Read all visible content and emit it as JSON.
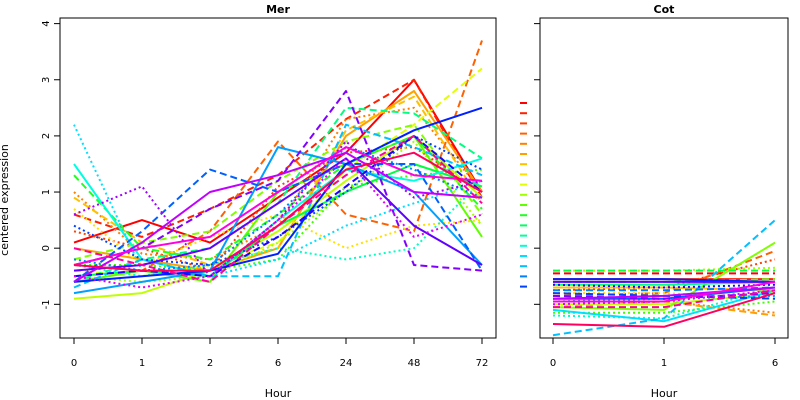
{
  "figure": {
    "ylabel": "centered expression"
  },
  "chart_data": [
    {
      "type": "line",
      "title": "Mer",
      "xlabel": "Hour",
      "ylabel": "centered expression",
      "categories": [
        "0",
        "1",
        "2",
        "6",
        "24",
        "48",
        "72"
      ],
      "ylim": [
        -1.6,
        4.1
      ],
      "yticks": [
        -1,
        0,
        1,
        2,
        3,
        4
      ],
      "grid": false,
      "series": [
        {
          "color": "#ff0000",
          "style": "solid",
          "values": [
            0.1,
            0.5,
            0.1,
            0.9,
            1.7,
            3.0,
            1.0
          ]
        },
        {
          "color": "#ff2000",
          "style": "dashed",
          "values": [
            0.6,
            0.2,
            0.7,
            1.3,
            2.3,
            3.0,
            0.9
          ]
        },
        {
          "color": "#ff4000",
          "style": "dotted",
          "values": [
            0.3,
            0.0,
            -0.4,
            1.1,
            1.7,
            1.8,
            1.0
          ]
        },
        {
          "color": "#ff6000",
          "style": "dashed",
          "values": [
            -0.3,
            -0.4,
            0.3,
            1.9,
            0.6,
            0.3,
            3.7
          ]
        },
        {
          "color": "#ff8000",
          "style": "dotted",
          "values": [
            1.0,
            -0.1,
            -0.2,
            0.4,
            2.3,
            2.5,
            1.0
          ]
        },
        {
          "color": "#ffa000",
          "style": "solid",
          "values": [
            0.0,
            -0.2,
            -0.4,
            0.0,
            2.0,
            2.8,
            1.0
          ]
        },
        {
          "color": "#ffc000",
          "style": "dashed",
          "values": [
            0.9,
            0.1,
            -0.3,
            0.0,
            2.1,
            2.7,
            0.8
          ]
        },
        {
          "color": "#ffe000",
          "style": "dotted",
          "values": [
            0.7,
            -0.3,
            0.2,
            0.6,
            0.0,
            0.4,
            0.5
          ]
        },
        {
          "color": "#e0ff00",
          "style": "dashed",
          "values": [
            -0.4,
            -0.5,
            -0.3,
            0.1,
            1.4,
            2.2,
            3.2
          ]
        },
        {
          "color": "#c0ff00",
          "style": "solid",
          "values": [
            -0.9,
            -0.8,
            -0.4,
            0.3,
            1.2,
            2.0,
            0.9
          ]
        },
        {
          "color": "#a0ff00",
          "style": "dotted",
          "values": [
            -0.5,
            -0.6,
            -0.5,
            0.1,
            1.0,
            1.9,
            0.4
          ]
        },
        {
          "color": "#80ff00",
          "style": "dashed",
          "values": [
            -0.2,
            0.1,
            0.3,
            1.2,
            1.9,
            2.2,
            0.6
          ]
        },
        {
          "color": "#60ff00",
          "style": "solid",
          "values": [
            -0.6,
            -0.4,
            -0.6,
            1.0,
            1.5,
            2.0,
            0.2
          ]
        },
        {
          "color": "#40ff00",
          "style": "dotted",
          "values": [
            -0.3,
            -0.3,
            -0.4,
            -0.2,
            1.1,
            1.3,
            1.4
          ]
        },
        {
          "color": "#20ff20",
          "style": "dashed",
          "values": [
            1.3,
            0.0,
            -0.2,
            0.6,
            1.5,
            2.0,
            0.7
          ]
        },
        {
          "color": "#00ff40",
          "style": "solid",
          "values": [
            -0.5,
            -0.4,
            -0.5,
            0.4,
            1.0,
            1.5,
            1.1
          ]
        },
        {
          "color": "#00ff80",
          "style": "dashed",
          "values": [
            -0.6,
            -0.2,
            0.0,
            0.8,
            2.5,
            2.4,
            1.6
          ]
        },
        {
          "color": "#00ffc0",
          "style": "dotted",
          "values": [
            -0.3,
            -0.5,
            -0.3,
            0.0,
            -0.2,
            0.0,
            1.2
          ]
        },
        {
          "color": "#00ffe0",
          "style": "solid",
          "values": [
            1.5,
            -0.2,
            -0.5,
            0.5,
            1.4,
            1.2,
            1.6
          ]
        },
        {
          "color": "#00e0ff",
          "style": "dotted",
          "values": [
            2.2,
            -0.4,
            -0.5,
            -0.2,
            0.4,
            0.8,
            1.2
          ]
        },
        {
          "color": "#00c0ff",
          "style": "dashed",
          "values": [
            -0.7,
            -0.2,
            -0.5,
            -0.5,
            2.2,
            1.8,
            1.3
          ]
        },
        {
          "color": "#00a0ff",
          "style": "solid",
          "values": [
            -0.8,
            -0.6,
            -0.4,
            1.8,
            1.5,
            1.0,
            -0.3
          ]
        },
        {
          "color": "#0080ff",
          "style": "dotted",
          "values": [
            -0.2,
            -0.4,
            -0.3,
            0.6,
            1.8,
            1.4,
            0.9
          ]
        },
        {
          "color": "#0060ff",
          "style": "dashed",
          "values": [
            -0.6,
            0.3,
            1.4,
            1.0,
            1.5,
            1.5,
            -0.4
          ]
        },
        {
          "color": "#0040ff",
          "style": "dotted",
          "values": [
            0.4,
            -0.2,
            -0.3,
            0.2,
            1.0,
            2.0,
            1.4
          ]
        },
        {
          "color": "#0020ff",
          "style": "solid",
          "values": [
            -0.6,
            -0.5,
            -0.4,
            -0.1,
            1.5,
            2.1,
            2.5
          ]
        },
        {
          "color": "#2000ff",
          "style": "dashed",
          "values": [
            -0.5,
            -0.4,
            -0.5,
            0.2,
            1.1,
            2.0,
            1.0
          ]
        },
        {
          "color": "#6000ff",
          "style": "solid",
          "values": [
            -0.4,
            -0.3,
            0.0,
            0.8,
            1.6,
            0.4,
            -0.3
          ]
        },
        {
          "color": "#8000ff",
          "style": "dashed",
          "values": [
            -0.3,
            0.0,
            0.7,
            1.2,
            2.8,
            -0.3,
            -0.4
          ]
        },
        {
          "color": "#a000ff",
          "style": "dotted",
          "values": [
            0.6,
            1.1,
            -0.5,
            0.5,
            1.9,
            0.9,
            1.2
          ]
        },
        {
          "color": "#c000ff",
          "style": "solid",
          "values": [
            -0.6,
            0.1,
            1.0,
            1.3,
            1.7,
            1.0,
            0.9
          ]
        },
        {
          "color": "#e000ff",
          "style": "dotted",
          "values": [
            -0.5,
            -0.7,
            -0.5,
            0.5,
            1.6,
            0.2,
            0.6
          ]
        },
        {
          "color": "#ff00e0",
          "style": "solid",
          "values": [
            -0.3,
            0.0,
            0.2,
            1.0,
            1.8,
            1.3,
            1.2
          ]
        },
        {
          "color": "#ff00a0",
          "style": "dashed",
          "values": [
            0.0,
            -0.3,
            -0.6,
            0.4,
            1.3,
            2.0,
            0.8
          ]
        },
        {
          "color": "#ff0060",
          "style": "solid",
          "values": [
            -0.3,
            -0.4,
            -0.4,
            0.4,
            1.4,
            1.7,
            1.0
          ]
        }
      ]
    },
    {
      "type": "line",
      "title": "Cot",
      "xlabel": "Hour",
      "categories": [
        "0",
        "1",
        "6"
      ],
      "ylim": [
        -1.6,
        4.1
      ],
      "grid": false,
      "series": [
        {
          "color": "#ff0000",
          "style": "dashed",
          "values": [
            -0.45,
            -0.45,
            -0.45
          ]
        },
        {
          "color": "#ff2000",
          "style": "solid",
          "values": [
            -0.55,
            -0.55,
            -0.55
          ]
        },
        {
          "color": "#ff4000",
          "style": "dotted",
          "values": [
            -0.75,
            -0.7,
            -0.2
          ]
        },
        {
          "color": "#ff6000",
          "style": "dashed",
          "values": [
            -0.85,
            -0.8,
            -0.05
          ]
        },
        {
          "color": "#ff8000",
          "style": "dotted",
          "values": [
            -0.95,
            -0.95,
            -1.15
          ]
        },
        {
          "color": "#ffa000",
          "style": "dashed",
          "values": [
            -1.05,
            -0.95,
            -1.2
          ]
        },
        {
          "color": "#ffc000",
          "style": "solid",
          "values": [
            -0.7,
            -0.7,
            -0.75
          ]
        },
        {
          "color": "#ffe000",
          "style": "dotted",
          "values": [
            -0.8,
            -0.8,
            -0.9
          ]
        },
        {
          "color": "#e0ff00",
          "style": "dashed",
          "values": [
            -0.9,
            -0.9,
            -0.8
          ]
        },
        {
          "color": "#c0ff00",
          "style": "solid",
          "values": [
            -1.0,
            -1.0,
            -0.8
          ]
        },
        {
          "color": "#a0ff00",
          "style": "dotted",
          "values": [
            -0.4,
            -0.4,
            -0.35
          ]
        },
        {
          "color": "#80ff00",
          "style": "solid",
          "values": [
            -1.05,
            -1.1,
            0.1
          ]
        },
        {
          "color": "#60ff00",
          "style": "dashed",
          "values": [
            -0.6,
            -0.6,
            -0.55
          ]
        },
        {
          "color": "#40ff00",
          "style": "dotted",
          "values": [
            -1.15,
            -1.15,
            -0.95
          ]
        },
        {
          "color": "#00ff40",
          "style": "dashed",
          "values": [
            -0.4,
            -0.4,
            -0.4
          ]
        },
        {
          "color": "#00ff80",
          "style": "solid",
          "values": [
            -0.65,
            -0.65,
            -0.6
          ]
        },
        {
          "color": "#00ffc0",
          "style": "dotted",
          "values": [
            -1.2,
            -1.25,
            -0.7
          ]
        },
        {
          "color": "#00e0ff",
          "style": "solid",
          "values": [
            -1.1,
            -1.3,
            -0.75
          ]
        },
        {
          "color": "#00c0ff",
          "style": "dashed",
          "values": [
            -1.55,
            -1.25,
            0.5
          ]
        },
        {
          "color": "#00a0ff",
          "style": "dotted",
          "values": [
            -0.95,
            -0.9,
            -0.85
          ]
        },
        {
          "color": "#0080ff",
          "style": "dashed",
          "values": [
            -0.75,
            -0.75,
            -0.7
          ]
        },
        {
          "color": "#0060ff",
          "style": "solid",
          "values": [
            -0.9,
            -0.9,
            -0.7
          ]
        },
        {
          "color": "#0040ff",
          "style": "dashed",
          "values": [
            -0.8,
            -0.85,
            -0.9
          ]
        },
        {
          "color": "#0020ff",
          "style": "solid",
          "values": [
            -0.55,
            -0.55,
            -0.6
          ]
        },
        {
          "color": "#2000ff",
          "style": "dotted",
          "values": [
            -0.65,
            -0.7,
            -0.65
          ]
        },
        {
          "color": "#6000ff",
          "style": "solid",
          "values": [
            -0.6,
            -0.6,
            -0.6
          ]
        },
        {
          "color": "#8000ff",
          "style": "dashed",
          "values": [
            -0.85,
            -0.9,
            -0.8
          ]
        },
        {
          "color": "#c000ff",
          "style": "solid",
          "values": [
            -0.9,
            -0.85,
            -0.7
          ]
        },
        {
          "color": "#e000ff",
          "style": "dotted",
          "values": [
            -1.0,
            -0.95,
            -0.75
          ]
        },
        {
          "color": "#ff00e0",
          "style": "solid",
          "values": [
            -0.95,
            -0.95,
            -0.6
          ]
        },
        {
          "color": "#ff00a0",
          "style": "dashed",
          "values": [
            -1.05,
            -1.05,
            -0.75
          ]
        },
        {
          "color": "#ff0060",
          "style": "solid",
          "values": [
            -1.35,
            -1.4,
            -0.8
          ]
        }
      ]
    }
  ],
  "legend_keys": {
    "colors": [
      "#ff0000",
      "#ff2000",
      "#ff4000",
      "#ff6000",
      "#ff8000",
      "#ffa000",
      "#ffc000",
      "#ffe000",
      "#e0ff00",
      "#a0ff00",
      "#60ff00",
      "#20ff20",
      "#00ff60",
      "#00ffa0",
      "#00ffd0",
      "#00e0ff",
      "#00c0ff",
      "#0080ff",
      "#0040ff"
    ],
    "style": "dashed"
  }
}
